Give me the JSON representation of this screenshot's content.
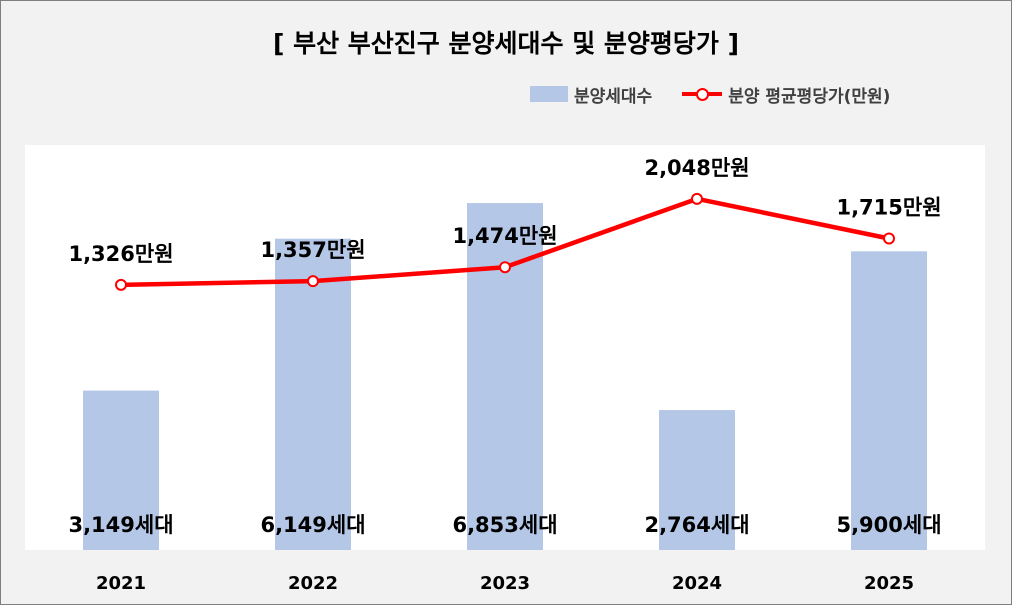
{
  "chart_data": {
    "type": "bar",
    "title": "[ 부산 부산진구 분양세대수 및 분양평당가 ]",
    "categories": [
      "2021",
      "2022",
      "2023",
      "2024",
      "2025"
    ],
    "series": [
      {
        "name": "분양세대수",
        "type": "bar",
        "values": [
          3149,
          6149,
          6853,
          2764,
          5900
        ],
        "data_labels": [
          "3,149세대",
          "6,149세대",
          "6,853세대",
          "2,764세대",
          "5,900세대"
        ],
        "color": "#b4c7e7"
      },
      {
        "name": "분양 평균평당가(만원)",
        "type": "line",
        "values": [
          1326,
          1357,
          1474,
          2048,
          1715
        ],
        "data_labels": [
          "1,326만원",
          "1,357만원",
          "1,474만원",
          "2,048만원",
          "1,715만원"
        ],
        "color": "#ff0000"
      }
    ],
    "bar_axis_range": [
      0,
      8000
    ],
    "line_axis_range": [
      -900,
      2500
    ],
    "legend_position": "top-right",
    "grid": false
  }
}
